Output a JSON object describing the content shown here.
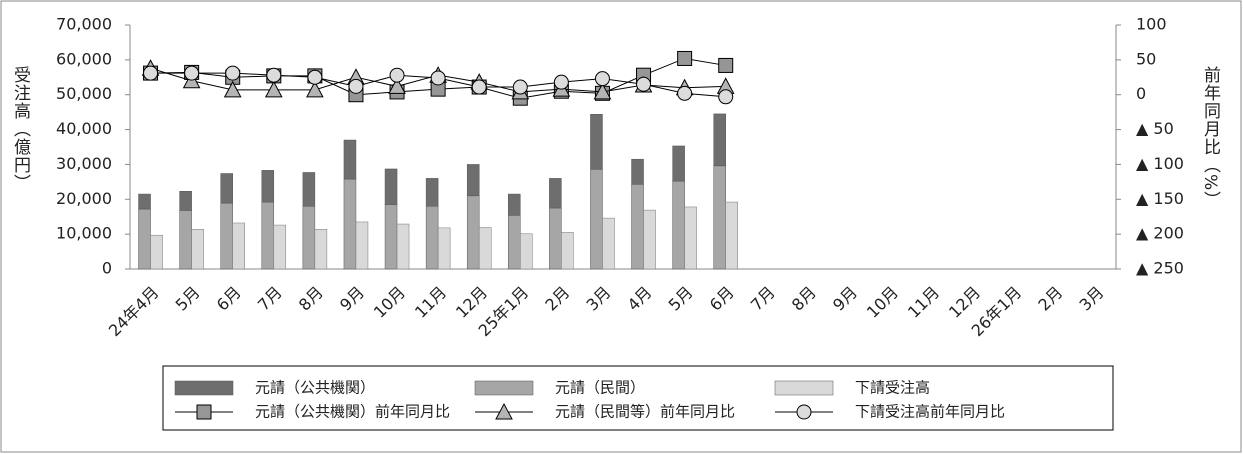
{
  "chart_data": {
    "type": "bar",
    "y_label": "受注高（億円）",
    "y2_label": "前年同月比（%）",
    "categories": [
      "24年4月",
      "5月",
      "6月",
      "7月",
      "8月",
      "9月",
      "10月",
      "11月",
      "12月",
      "25年1月",
      "2月",
      "3月",
      "4月",
      "5月",
      "6月",
      "7月",
      "8月",
      "9月",
      "10月",
      "11月",
      "12月",
      "26年1月",
      "2月",
      "3月"
    ],
    "ylim": [
      0,
      70000
    ],
    "yticks": [
      0,
      {
        "value": 10000,
        "label": "10,000"
      },
      {
        "value": 20000,
        "label": "20,000"
      },
      {
        "value": 30000,
        "label": "30,000"
      },
      {
        "value": 40000,
        "label": "40,000"
      },
      {
        "value": 50000,
        "label": "50,000"
      },
      {
        "value": 60000,
        "label": "60,000"
      },
      {
        "value": 70000,
        "label": "70,000"
      }
    ],
    "y2lim": [
      -250,
      100
    ],
    "y2ticks": [
      100,
      50,
      0,
      {
        "value": -50,
        "label": "▲ 50"
      },
      {
        "value": -100,
        "label": "▲ 100"
      },
      {
        "value": -150,
        "label": "▲ 150"
      },
      {
        "value": -200,
        "label": "▲ 200"
      },
      {
        "value": -250,
        "label": "▲ 250"
      }
    ],
    "series": [
      {
        "name": "元請（公共機関）",
        "type": "bar",
        "stack": true,
        "color": "#6e6e6e",
        "values": [
          4300,
          5500,
          8500,
          9100,
          9700,
          11200,
          10200,
          8000,
          9000,
          6100,
          8500,
          15800,
          7200,
          10100,
          14900,
          null,
          null,
          null,
          null,
          null,
          null,
          null,
          null,
          null
        ]
      },
      {
        "name": "元請（民間）",
        "type": "bar",
        "stack": true,
        "color": "#a6a6a6",
        "values": [
          17200,
          16800,
          18900,
          19200,
          18000,
          25800,
          18500,
          18000,
          21000,
          15400,
          17500,
          28600,
          24300,
          25200,
          29600,
          null,
          null,
          null,
          null,
          null,
          null,
          null,
          null,
          null
        ]
      },
      {
        "name": "下請受注高",
        "type": "bar",
        "stack": false,
        "color": "#d9d9d9",
        "values": [
          9700,
          11400,
          13200,
          12600,
          11400,
          13500,
          12900,
          11800,
          11900,
          10100,
          10500,
          14600,
          16900,
          17800,
          19200,
          null,
          null,
          null,
          null,
          null,
          null,
          null,
          null,
          null
        ]
      },
      {
        "name": "元請（公共機関）前年同月比",
        "type": "line",
        "axis": "y2",
        "marker": "square",
        "color": "#969696",
        "values": [
          31,
          32,
          25,
          27,
          27,
          0,
          4,
          8,
          11,
          -5,
          5,
          2,
          28,
          52,
          42,
          null,
          null,
          null,
          null,
          null,
          null,
          null,
          null,
          null
        ]
      },
      {
        "name": "元請（民間等）前年同月比",
        "type": "line",
        "axis": "y2",
        "marker": "triangle",
        "color": "#b4b4b4",
        "values": [
          38,
          20,
          7,
          7,
          7,
          25,
          12,
          28,
          18,
          4,
          8,
          4,
          14,
          10,
          12,
          null,
          null,
          null,
          null,
          null,
          null,
          null,
          null,
          null
        ]
      },
      {
        "name": "下請受注高前年同月比",
        "type": "line",
        "axis": "y2",
        "marker": "circle",
        "color": "#dcdcdc",
        "values": [
          31,
          31,
          31,
          28,
          25,
          12,
          28,
          24,
          11,
          11,
          18,
          23,
          15,
          2,
          -3,
          null,
          null,
          null,
          null,
          null,
          null,
          null,
          null,
          null
        ]
      }
    ]
  }
}
